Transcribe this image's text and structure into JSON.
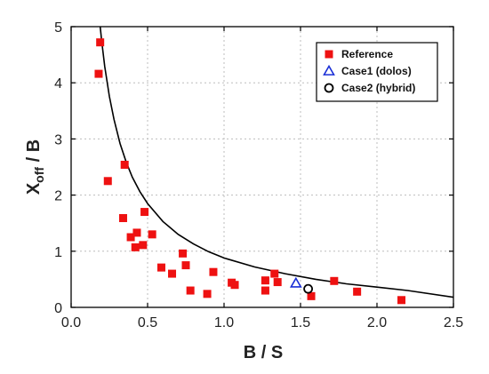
{
  "chart_data": {
    "type": "scatter",
    "xlabel": "B / S",
    "ylabel": {
      "main": "X",
      "sub": "off",
      "rest": " / B"
    },
    "xlim": [
      0.0,
      2.5
    ],
    "ylim": [
      0,
      5
    ],
    "x_ticks": [
      "0.0",
      "0.5",
      "1.0",
      "1.5",
      "2.0",
      "2.5"
    ],
    "y_ticks": [
      "0",
      "1",
      "2",
      "3",
      "4",
      "5"
    ],
    "grid": true,
    "legend_position": "top-right",
    "legend": [
      "Reference",
      "Case1 (dolos)",
      "Case2 (hybrid)"
    ],
    "colors": {
      "reference": "#ee1111",
      "case1": "#1a2fd6",
      "case2": "#000000",
      "curve": "#000000"
    },
    "series": [
      {
        "name": "Reference",
        "marker": "square",
        "points": [
          [
            0.19,
            4.72
          ],
          [
            0.18,
            4.16
          ],
          [
            0.24,
            2.25
          ],
          [
            0.35,
            2.54
          ],
          [
            0.34,
            1.59
          ],
          [
            0.39,
            1.25
          ],
          [
            0.42,
            1.07
          ],
          [
            0.43,
            1.33
          ],
          [
            0.47,
            1.11
          ],
          [
            0.48,
            1.7
          ],
          [
            0.53,
            1.3
          ],
          [
            0.59,
            0.71
          ],
          [
            0.66,
            0.6
          ],
          [
            0.73,
            0.96
          ],
          [
            0.75,
            0.75
          ],
          [
            0.78,
            0.3
          ],
          [
            0.89,
            0.24
          ],
          [
            0.93,
            0.63
          ],
          [
            1.05,
            0.44
          ],
          [
            1.07,
            0.4
          ],
          [
            1.27,
            0.48
          ],
          [
            1.27,
            0.3
          ],
          [
            1.33,
            0.6
          ],
          [
            1.35,
            0.45
          ],
          [
            1.57,
            0.2
          ],
          [
            1.72,
            0.47
          ],
          [
            1.87,
            0.28
          ],
          [
            2.16,
            0.13
          ]
        ]
      },
      {
        "name": "Case1 (dolos)",
        "marker": "triangle",
        "points": [
          [
            1.47,
            0.43
          ]
        ]
      },
      {
        "name": "Case2 (hybrid)",
        "marker": "circle",
        "points": [
          [
            1.55,
            0.33
          ]
        ]
      }
    ],
    "fit_curve": {
      "points": [
        [
          0.19,
          5.0
        ],
        [
          0.2,
          4.74
        ],
        [
          0.22,
          4.29
        ],
        [
          0.25,
          3.76
        ],
        [
          0.28,
          3.35
        ],
        [
          0.32,
          2.92
        ],
        [
          0.36,
          2.59
        ],
        [
          0.4,
          2.32
        ],
        [
          0.45,
          2.06
        ],
        [
          0.5,
          1.85
        ],
        [
          0.6,
          1.53
        ],
        [
          0.7,
          1.3
        ],
        [
          0.8,
          1.13
        ],
        [
          0.9,
          0.99
        ],
        [
          1.0,
          0.88
        ],
        [
          1.2,
          0.72
        ],
        [
          1.4,
          0.6
        ],
        [
          1.6,
          0.5
        ],
        [
          1.8,
          0.42
        ],
        [
          2.0,
          0.36
        ],
        [
          2.2,
          0.3
        ],
        [
          2.5,
          0.18
        ]
      ]
    }
  }
}
